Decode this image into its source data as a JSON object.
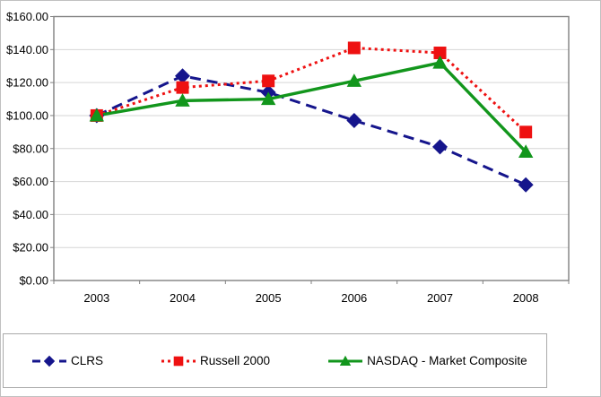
{
  "chart_data": {
    "type": "line",
    "title": "",
    "x_labels": [
      "2003",
      "2004",
      "2005",
      "2006",
      "2007",
      "2008"
    ],
    "series": [
      {
        "name": "CLRS",
        "color": "#15158C",
        "line_style": "dashed",
        "marker": "diamond",
        "values": [
          100,
          124,
          114,
          97,
          81,
          58
        ]
      },
      {
        "name": "Russell 2000",
        "color": "#EE1111",
        "line_style": "dotted",
        "marker": "square",
        "values": [
          100,
          117,
          121,
          141,
          138,
          90
        ]
      },
      {
        "name": "NASDAQ - Market Composite",
        "color": "#12961C",
        "line_style": "solid",
        "marker": "triangle",
        "values": [
          100,
          109,
          110,
          121,
          132,
          78
        ]
      }
    ],
    "y_axis": {
      "min": 0,
      "max": 160,
      "step": 20,
      "tick_labels": [
        "$0.00",
        "$20.00",
        "$40.00",
        "$60.00",
        "$80.00",
        "$100.00",
        "$120.00",
        "$140.00",
        "$160.00"
      ]
    },
    "grid": "horizontal",
    "legend_position": "bottom"
  },
  "colors": {
    "grid": "#D6D6D6",
    "axis": "#808080",
    "background": "#FFFFFF",
    "text": "#000000",
    "frame_border": "#C0C0C0",
    "legend_border": "#AAAAAA"
  }
}
